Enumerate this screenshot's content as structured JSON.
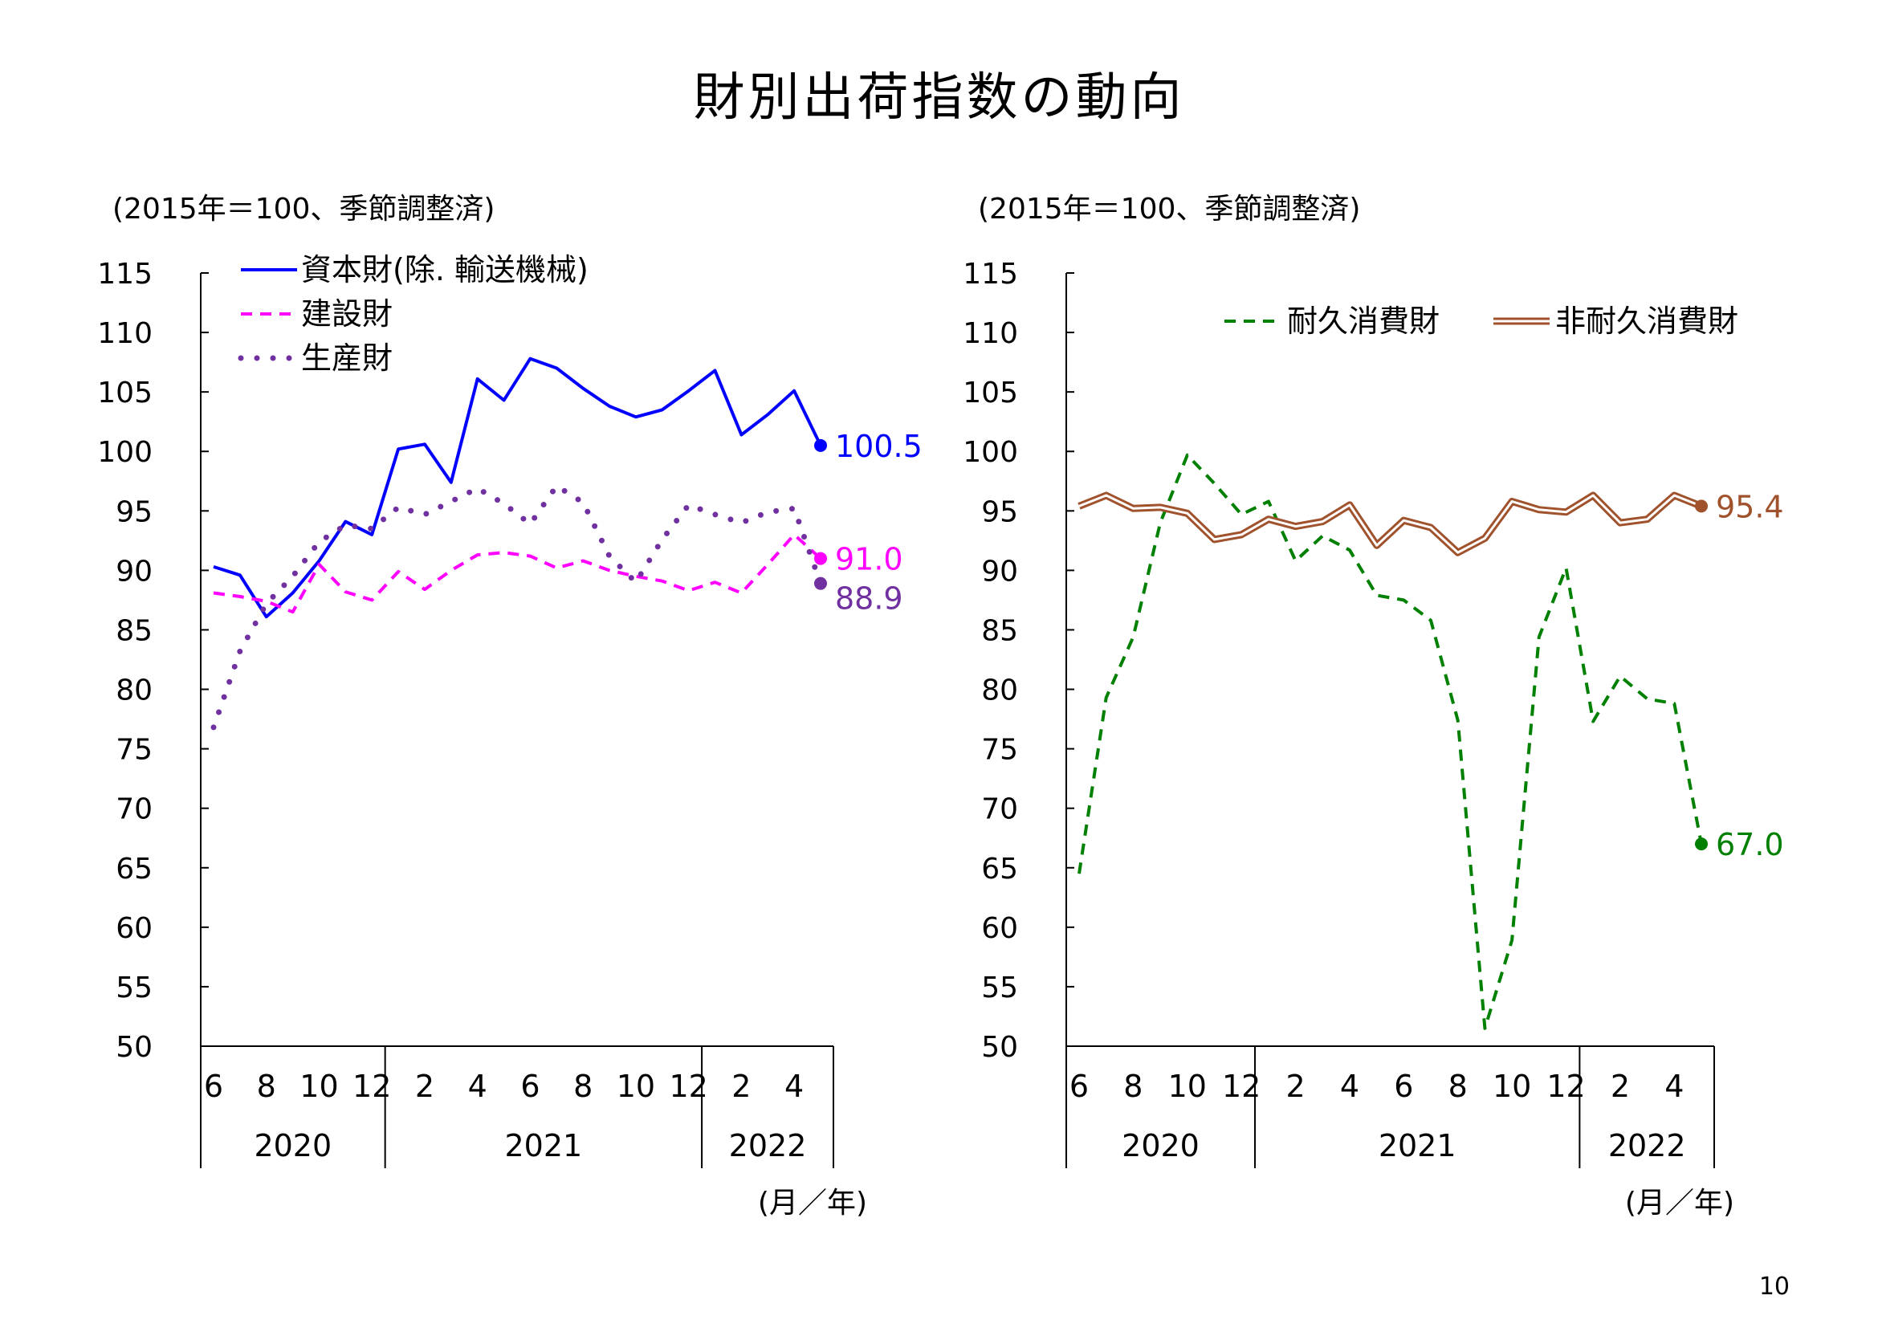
{
  "page": {
    "title": "財別出荷指数の動向",
    "number": "10"
  },
  "chart_data": [
    {
      "type": "line",
      "unit_label": "(2015年＝100、季節調整済)",
      "xlabel": "(月／年)",
      "ylim": [
        50,
        115
      ],
      "yticks": [
        "115",
        "110",
        "105",
        "100",
        "95",
        "90",
        "85",
        "80",
        "75",
        "70",
        "65",
        "60",
        "55",
        "50"
      ],
      "months": [
        "6",
        "",
        "8",
        "",
        "10",
        "",
        "12",
        "",
        "2",
        "",
        "4",
        "",
        "6",
        "",
        "8",
        "",
        "10",
        "",
        "12",
        "",
        "2",
        "",
        "4",
        ""
      ],
      "years": [
        {
          "label": "2020",
          "start": 0,
          "end": 6
        },
        {
          "label": "2021",
          "start": 7,
          "end": 18
        },
        {
          "label": "2022",
          "start": 19,
          "end": 23
        }
      ],
      "legend_position": "top-left",
      "series": [
        {
          "name": "資本財(除. 輸送機械)",
          "style": "solid",
          "color": "#0000ff",
          "values": [
            90.3,
            89.6,
            86.1,
            88.1,
            90.8,
            94.1,
            93.0,
            100.2,
            100.6,
            97.4,
            106.1,
            104.3,
            107.8,
            107.0,
            105.3,
            103.8,
            102.9,
            103.5,
            105.1,
            106.8,
            101.4,
            103.1,
            105.1,
            100.5
          ],
          "end_label": "100.5"
        },
        {
          "name": "建設財",
          "style": "dashed",
          "color": "#ff00ff",
          "values": [
            88.1,
            87.8,
            87.4,
            86.5,
            90.5,
            88.2,
            87.5,
            89.9,
            88.4,
            90.0,
            91.3,
            91.5,
            91.2,
            90.2,
            90.8,
            90.0,
            89.5,
            89.1,
            88.3,
            89.0,
            88.1,
            90.5,
            93.0,
            91.0
          ],
          "end_label": "91.0"
        },
        {
          "name": "生産財",
          "style": "dotted",
          "color": "#7030a0",
          "values": [
            76.8,
            83.2,
            87.2,
            89.5,
            92.4,
            93.8,
            93.5,
            95.3,
            94.7,
            95.8,
            96.9,
            95.6,
            93.9,
            97.1,
            95.7,
            91.2,
            89.0,
            92.6,
            95.5,
            94.7,
            94.0,
            94.9,
            95.2,
            88.9
          ],
          "end_label": "88.9"
        }
      ]
    },
    {
      "type": "line",
      "unit_label": "(2015年＝100、季節調整済)",
      "xlabel": "(月／年)",
      "ylim": [
        50,
        115
      ],
      "yticks": [
        "115",
        "110",
        "105",
        "100",
        "95",
        "90",
        "85",
        "80",
        "75",
        "70",
        "65",
        "60",
        "55",
        "50"
      ],
      "months": [
        "6",
        "",
        "8",
        "",
        "10",
        "",
        "12",
        "",
        "2",
        "",
        "4",
        "",
        "6",
        "",
        "8",
        "",
        "10",
        "",
        "12",
        "",
        "2",
        "",
        "4",
        ""
      ],
      "years": [
        {
          "label": "2020",
          "start": 0,
          "end": 6
        },
        {
          "label": "2021",
          "start": 7,
          "end": 18
        },
        {
          "label": "2022",
          "start": 19,
          "end": 23
        }
      ],
      "legend_position": "top-right",
      "series": [
        {
          "name": "耐久消費財",
          "style": "dashed",
          "color": "#008000",
          "values": [
            64.5,
            79.3,
            84.4,
            94.0,
            99.7,
            97.3,
            94.7,
            95.8,
            90.8,
            92.9,
            91.7,
            87.9,
            87.5,
            85.8,
            77.4,
            51.5,
            58.9,
            84.4,
            90.2,
            77.3,
            81.1,
            79.2,
            78.8,
            67.0
          ],
          "end_label": "67.0"
        },
        {
          "name": "非耐久消費財",
          "style": "double",
          "color": "#a0522d",
          "values": [
            95.4,
            96.3,
            95.2,
            95.3,
            94.8,
            92.6,
            93.0,
            94.3,
            93.7,
            94.1,
            95.5,
            92.1,
            94.2,
            93.6,
            91.5,
            92.7,
            95.8,
            95.1,
            94.9,
            96.3,
            94.0,
            94.3,
            96.3,
            95.4
          ],
          "end_label": "95.4"
        }
      ]
    }
  ]
}
